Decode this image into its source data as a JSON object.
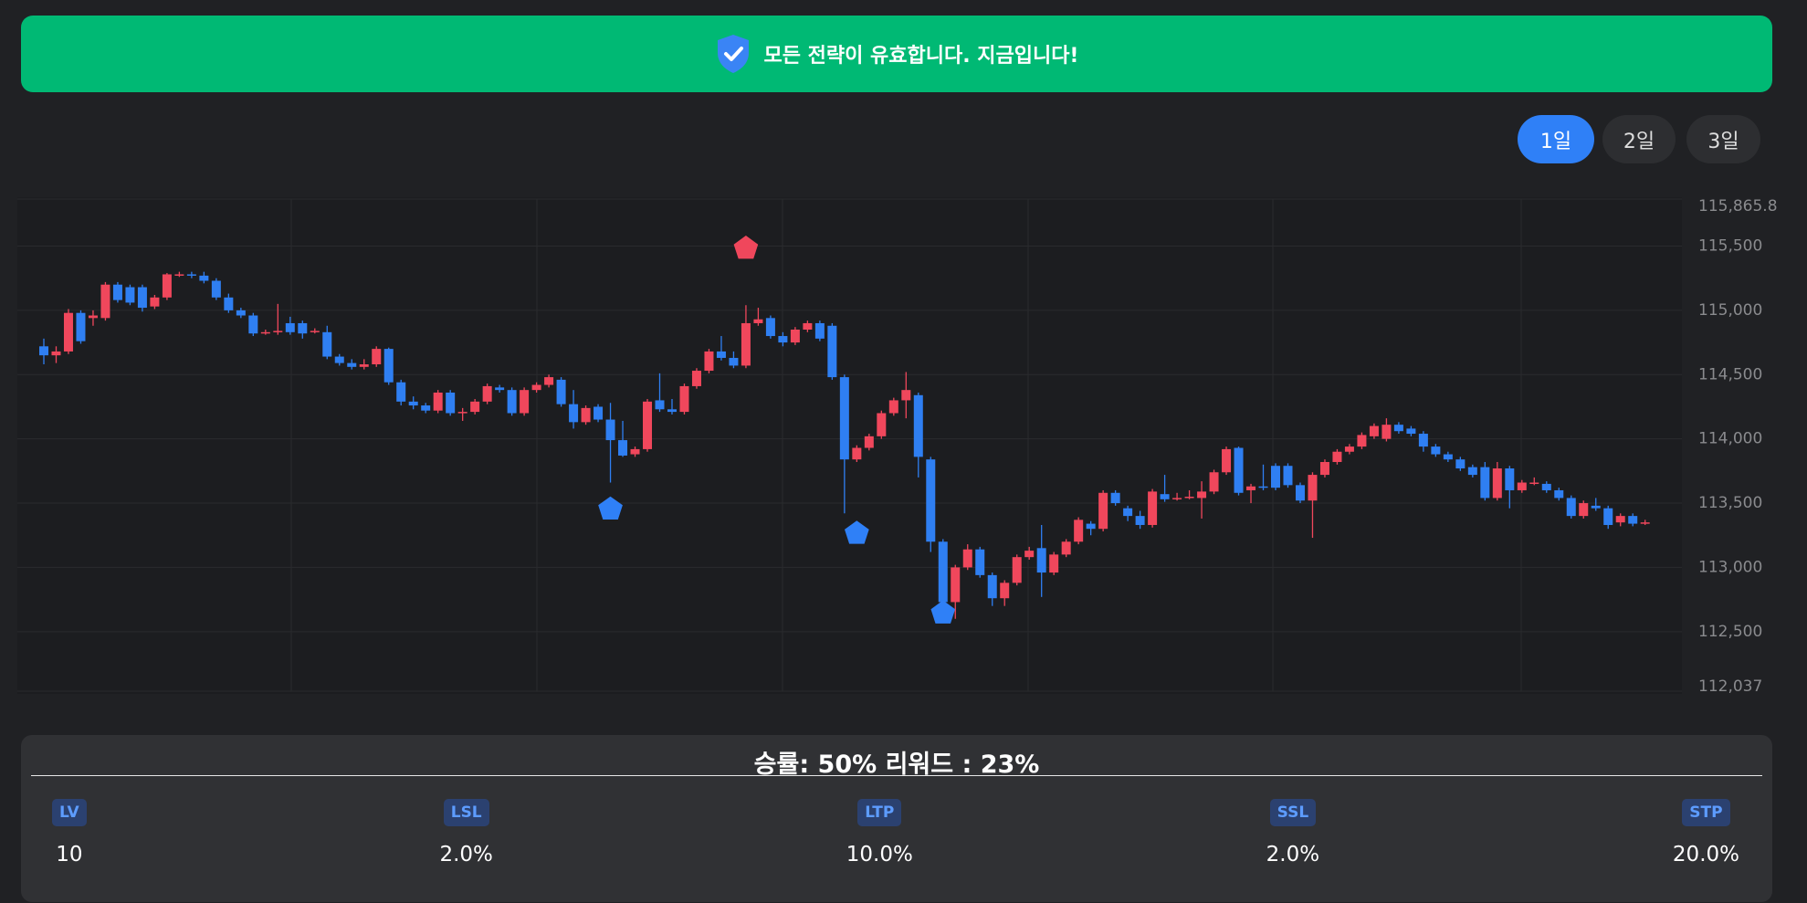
{
  "banner": {
    "text": "모든 전략이 유효합니다. 지금입니다!"
  },
  "range_buttons": [
    {
      "label": "1일",
      "active": true
    },
    {
      "label": "2일",
      "active": false
    },
    {
      "label": "3일",
      "active": false
    }
  ],
  "chart_data": {
    "type": "candlestick",
    "up_color": "#f0475c",
    "down_color": "#2f7ff2",
    "grid": true,
    "ylim": [
      112037,
      115865.8
    ],
    "yticks": [
      {
        "value": 115865.8,
        "label": "115,865.8"
      },
      {
        "value": 115500,
        "label": "115,500"
      },
      {
        "value": 115000,
        "label": "115,000"
      },
      {
        "value": 114500,
        "label": "114,500"
      },
      {
        "value": 114000,
        "label": "114,000"
      },
      {
        "value": 113500,
        "label": "113,500"
      },
      {
        "value": 113000,
        "label": "113,000"
      },
      {
        "value": 112500,
        "label": "112,500"
      },
      {
        "value": 112037,
        "label": "112,037"
      }
    ],
    "ohlc": [
      [
        114720,
        114780,
        114580,
        114650
      ],
      [
        114650,
        114720,
        114590,
        114680
      ],
      [
        114680,
        115010,
        114660,
        114980
      ],
      [
        114980,
        115000,
        114740,
        114760
      ],
      [
        114940,
        115000,
        114880,
        114960
      ],
      [
        114940,
        115220,
        114920,
        115200
      ],
      [
        115200,
        115220,
        115060,
        115080
      ],
      [
        115180,
        115200,
        115040,
        115060
      ],
      [
        115180,
        115200,
        114990,
        115020
      ],
      [
        115030,
        115120,
        115010,
        115100
      ],
      [
        115100,
        115290,
        115080,
        115280
      ],
      [
        115270,
        115300,
        115260,
        115280
      ],
      [
        115280,
        115300,
        115250,
        115270
      ],
      [
        115270,
        115300,
        115210,
        115230
      ],
      [
        115230,
        115250,
        115080,
        115100
      ],
      [
        115100,
        115130,
        114980,
        115000
      ],
      [
        115000,
        115020,
        114940,
        114960
      ],
      [
        114960,
        114980,
        114800,
        114820
      ],
      [
        114830,
        114850,
        114810,
        114830
      ],
      [
        114830,
        115050,
        114810,
        114840
      ],
      [
        114900,
        114950,
        114810,
        114830
      ],
      [
        114900,
        114920,
        114780,
        114820
      ],
      [
        114840,
        114860,
        114820,
        114840
      ],
      [
        114830,
        114880,
        114620,
        114640
      ],
      [
        114640,
        114660,
        114570,
        114590
      ],
      [
        114590,
        114620,
        114540,
        114560
      ],
      [
        114560,
        114620,
        114540,
        114580
      ],
      [
        114580,
        114720,
        114560,
        114700
      ],
      [
        114700,
        114710,
        114420,
        114440
      ],
      [
        114440,
        114460,
        114260,
        114290
      ],
      [
        114290,
        114330,
        114230,
        114260
      ],
      [
        114260,
        114280,
        114200,
        114220
      ],
      [
        114220,
        114380,
        114200,
        114360
      ],
      [
        114360,
        114380,
        114180,
        114200
      ],
      [
        114200,
        114240,
        114140,
        114210
      ],
      [
        114210,
        114310,
        114190,
        114290
      ],
      [
        114290,
        114430,
        114270,
        114410
      ],
      [
        114400,
        114420,
        114360,
        114380
      ],
      [
        114380,
        114400,
        114180,
        114200
      ],
      [
        114200,
        114400,
        114180,
        114380
      ],
      [
        114380,
        114440,
        114360,
        114420
      ],
      [
        114420,
        114500,
        114400,
        114480
      ],
      [
        114460,
        114480,
        114250,
        114270
      ],
      [
        114270,
        114380,
        114080,
        114130
      ],
      [
        114130,
        114260,
        114110,
        114240
      ],
      [
        114250,
        114270,
        114130,
        114150
      ],
      [
        114150,
        114280,
        113660,
        113990
      ],
      [
        113990,
        114140,
        113860,
        113870
      ],
      [
        113880,
        113940,
        113860,
        113920
      ],
      [
        113920,
        114310,
        113900,
        114290
      ],
      [
        114300,
        114510,
        114210,
        114230
      ],
      [
        114230,
        114310,
        114190,
        114210
      ],
      [
        114210,
        114430,
        114190,
        114410
      ],
      [
        114410,
        114550,
        114390,
        114530
      ],
      [
        114530,
        114700,
        114510,
        114680
      ],
      [
        114680,
        114800,
        114610,
        114630
      ],
      [
        114630,
        114680,
        114550,
        114570
      ],
      [
        114570,
        115040,
        114550,
        114900
      ],
      [
        114900,
        115020,
        114880,
        114930
      ],
      [
        114940,
        114960,
        114780,
        114800
      ],
      [
        114800,
        114830,
        114720,
        114750
      ],
      [
        114750,
        114870,
        114730,
        114850
      ],
      [
        114850,
        114920,
        114830,
        114900
      ],
      [
        114900,
        114920,
        114760,
        114780
      ],
      [
        114880,
        114900,
        114460,
        114480
      ],
      [
        114480,
        114500,
        113420,
        113840
      ],
      [
        113840,
        113950,
        113820,
        113930
      ],
      [
        113930,
        114040,
        113910,
        114020
      ],
      [
        114020,
        114220,
        114000,
        114200
      ],
      [
        114200,
        114320,
        114180,
        114300
      ],
      [
        114300,
        114520,
        114160,
        114380
      ],
      [
        114340,
        114360,
        113700,
        113860
      ],
      [
        113840,
        113860,
        113120,
        113200
      ],
      [
        113200,
        113220,
        112600,
        112730
      ],
      [
        112730,
        113020,
        112600,
        113000
      ],
      [
        113000,
        113180,
        112980,
        113140
      ],
      [
        113140,
        113160,
        112920,
        112940
      ],
      [
        112940,
        112960,
        112700,
        112760
      ],
      [
        112760,
        112900,
        112700,
        112880
      ],
      [
        112880,
        113100,
        112860,
        113080
      ],
      [
        113080,
        113160,
        113060,
        113130
      ],
      [
        113150,
        113330,
        112770,
        112960
      ],
      [
        112960,
        113120,
        112940,
        113100
      ],
      [
        113100,
        113220,
        113080,
        113200
      ],
      [
        113200,
        113390,
        113180,
        113370
      ],
      [
        113340,
        113360,
        113250,
        113300
      ],
      [
        113300,
        113600,
        113280,
        113580
      ],
      [
        113580,
        113600,
        113480,
        113500
      ],
      [
        113460,
        113480,
        113360,
        113400
      ],
      [
        113400,
        113440,
        113300,
        113330
      ],
      [
        113330,
        113610,
        113310,
        113590
      ],
      [
        113570,
        113720,
        113510,
        113530
      ],
      [
        113540,
        113580,
        113520,
        113540
      ],
      [
        113550,
        113600,
        113530,
        113550
      ],
      [
        113540,
        113670,
        113380,
        113590
      ],
      [
        113590,
        113760,
        113570,
        113740
      ],
      [
        113740,
        113940,
        113720,
        113920
      ],
      [
        113930,
        113940,
        113560,
        113580
      ],
      [
        113600,
        113650,
        113500,
        113630
      ],
      [
        113630,
        113800,
        113600,
        113620
      ],
      [
        113790,
        113810,
        113600,
        113620
      ],
      [
        113790,
        113810,
        113620,
        113640
      ],
      [
        113640,
        113660,
        113500,
        113520
      ],
      [
        113520,
        113740,
        113230,
        113720
      ],
      [
        113720,
        113840,
        113700,
        113820
      ],
      [
        113820,
        113920,
        113800,
        113900
      ],
      [
        113900,
        113960,
        113880,
        113940
      ],
      [
        113940,
        114050,
        113920,
        114030
      ],
      [
        114020,
        114120,
        114000,
        114100
      ],
      [
        114000,
        114160,
        113980,
        114110
      ],
      [
        114110,
        114130,
        114040,
        114060
      ],
      [
        114080,
        114100,
        114020,
        114040
      ],
      [
        114040,
        114060,
        113900,
        113940
      ],
      [
        113940,
        113960,
        113860,
        113880
      ],
      [
        113880,
        113900,
        113820,
        113840
      ],
      [
        113840,
        113860,
        113750,
        113770
      ],
      [
        113780,
        113800,
        113700,
        113720
      ],
      [
        113780,
        113820,
        113520,
        113540
      ],
      [
        113540,
        113820,
        113520,
        113770
      ],
      [
        113770,
        113790,
        113460,
        113600
      ],
      [
        113600,
        113680,
        113580,
        113660
      ],
      [
        113660,
        113700,
        113640,
        113660
      ],
      [
        113650,
        113670,
        113580,
        113600
      ],
      [
        113600,
        113620,
        113520,
        113540
      ],
      [
        113540,
        113560,
        113380,
        113400
      ],
      [
        113400,
        113520,
        113380,
        113500
      ],
      [
        113480,
        113540,
        113440,
        113460
      ],
      [
        113460,
        113480,
        113300,
        113330
      ],
      [
        113350,
        113420,
        113320,
        113400
      ],
      [
        113400,
        113420,
        113320,
        113340
      ],
      [
        113350,
        113370,
        113330,
        113350
      ]
    ],
    "markers": [
      {
        "x": 46,
        "value": 113453,
        "color": "#2f80f7"
      },
      {
        "x": 57,
        "value": 115482,
        "color": "#f0475c"
      },
      {
        "x": 66,
        "value": 113264,
        "color": "#2f80f7"
      },
      {
        "x": 73,
        "value": 112644,
        "color": "#2f80f7"
      }
    ]
  },
  "stats": {
    "title": "승률: 50% 리워드 : 23%",
    "items": [
      {
        "label": "LV",
        "value": "10"
      },
      {
        "label": "LSL",
        "value": "2.0%"
      },
      {
        "label": "LTP",
        "value": "10.0%"
      },
      {
        "label": "SSL",
        "value": "2.0%"
      },
      {
        "label": "STP",
        "value": "20.0%"
      }
    ]
  }
}
